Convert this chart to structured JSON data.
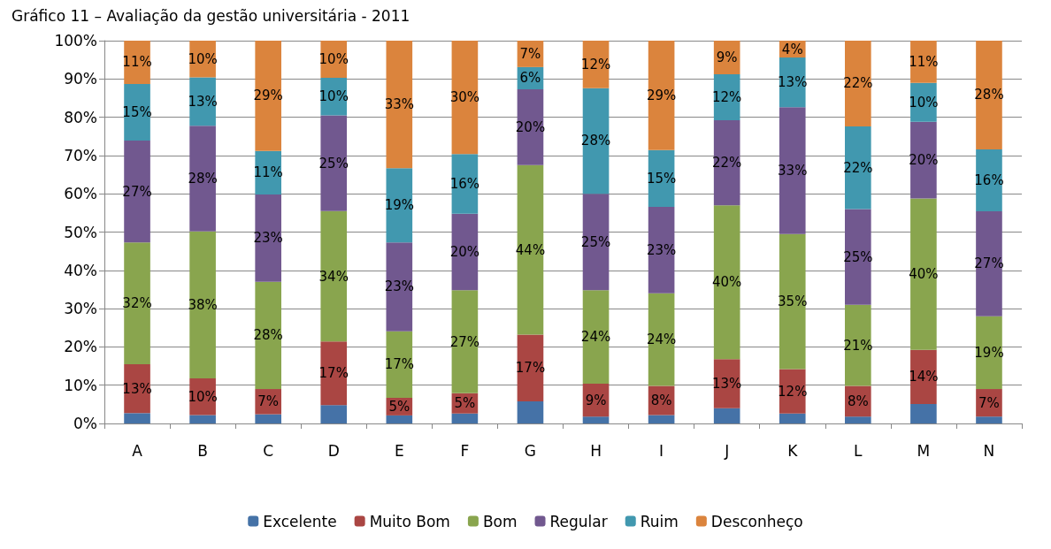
{
  "chart_data": {
    "type": "bar",
    "stacked": true,
    "title": "Gráfico 11 – Avaliação da gestão universitária - 2011",
    "categories": [
      "A",
      "B",
      "C",
      "D",
      "E",
      "F",
      "G",
      "H",
      "I",
      "J",
      "K",
      "L",
      "M",
      "N"
    ],
    "series": [
      {
        "name": "Excelente",
        "color": "#4572a7",
        "values": [
          2.7,
          2.2,
          2.4,
          4.8,
          2.1,
          2.6,
          5.8,
          1.8,
          2.2,
          4,
          2.6,
          1.8,
          5.1,
          1.8
        ]
      },
      {
        "name": "Muito Bom",
        "color": "#aa4643",
        "values": [
          12.8,
          9.6,
          6.6,
          16.6,
          4.6,
          5.3,
          17.4,
          8.6,
          7.6,
          12.8,
          11.6,
          8,
          14.1,
          7.2
        ],
        "value_labels": [
          "13%",
          "10%",
          "7%",
          "17%",
          "5%",
          "5%",
          "17%",
          "9%",
          "8%",
          "13%",
          "12%",
          "8%",
          "14%",
          "7%"
        ]
      },
      {
        "name": "Bom",
        "color": "#89a54e",
        "values": [
          31.8,
          38.4,
          28,
          34.1,
          17.4,
          26.9,
          44.3,
          24.4,
          24.2,
          40.2,
          35.3,
          21.2,
          39.6,
          19
        ],
        "value_labels": [
          "32%",
          "38%",
          "28%",
          "34%",
          "17%",
          "27%",
          "44%",
          "24%",
          "24%",
          "40%",
          "35%",
          "21%",
          "40%",
          "19%"
        ]
      },
      {
        "name": "Regular",
        "color": "#71588f",
        "values": [
          26.6,
          27.6,
          22.8,
          25,
          23.2,
          20,
          19.8,
          25.2,
          22.6,
          22.2,
          33.1,
          25,
          20,
          27.4
        ],
        "value_labels": [
          "27%",
          "28%",
          "23%",
          "25%",
          "23%",
          "20%",
          "20%",
          "25%",
          "23%",
          "22%",
          "33%",
          "25%",
          "20%",
          "27%"
        ]
      },
      {
        "name": "Ruim",
        "color": "#4198af",
        "values": [
          14.8,
          12.6,
          11.4,
          9.8,
          19.4,
          15.6,
          5.8,
          27.6,
          14.8,
          12,
          13,
          21.6,
          10.2,
          16.2
        ],
        "value_labels": [
          "15%",
          "13%",
          "11%",
          "10%",
          "19%",
          "16%",
          "6%",
          "28%",
          "15%",
          "12%",
          "13%",
          "22%",
          "10%",
          "16%"
        ]
      },
      {
        "name": "Desconheço",
        "color": "#db843d",
        "values": [
          11.3,
          9.6,
          28.8,
          9.7,
          33.3,
          29.6,
          6.9,
          12.4,
          28.6,
          8.8,
          4.4,
          22.4,
          11,
          28.4
        ],
        "value_labels": [
          "11%",
          "10%",
          "29%",
          "10%",
          "33%",
          "30%",
          "7%",
          "12%",
          "29%",
          "9%",
          "4%",
          "22%",
          "11%",
          "28%"
        ]
      }
    ],
    "ylim": [
      0,
      100
    ],
    "yticks": [
      {
        "value": 0,
        "label": "0%"
      },
      {
        "value": 10,
        "label": "10%"
      },
      {
        "value": 20,
        "label": "20%"
      },
      {
        "value": 30,
        "label": "30%"
      },
      {
        "value": 40,
        "label": "40%"
      },
      {
        "value": 50,
        "label": "50%"
      },
      {
        "value": 60,
        "label": "60%"
      },
      {
        "value": 70,
        "label": "70%"
      },
      {
        "value": 80,
        "label": "80%"
      },
      {
        "value": 90,
        "label": "90%"
      },
      {
        "value": 100,
        "label": "100%"
      }
    ],
    "grid": "y",
    "legend": "bottom"
  }
}
